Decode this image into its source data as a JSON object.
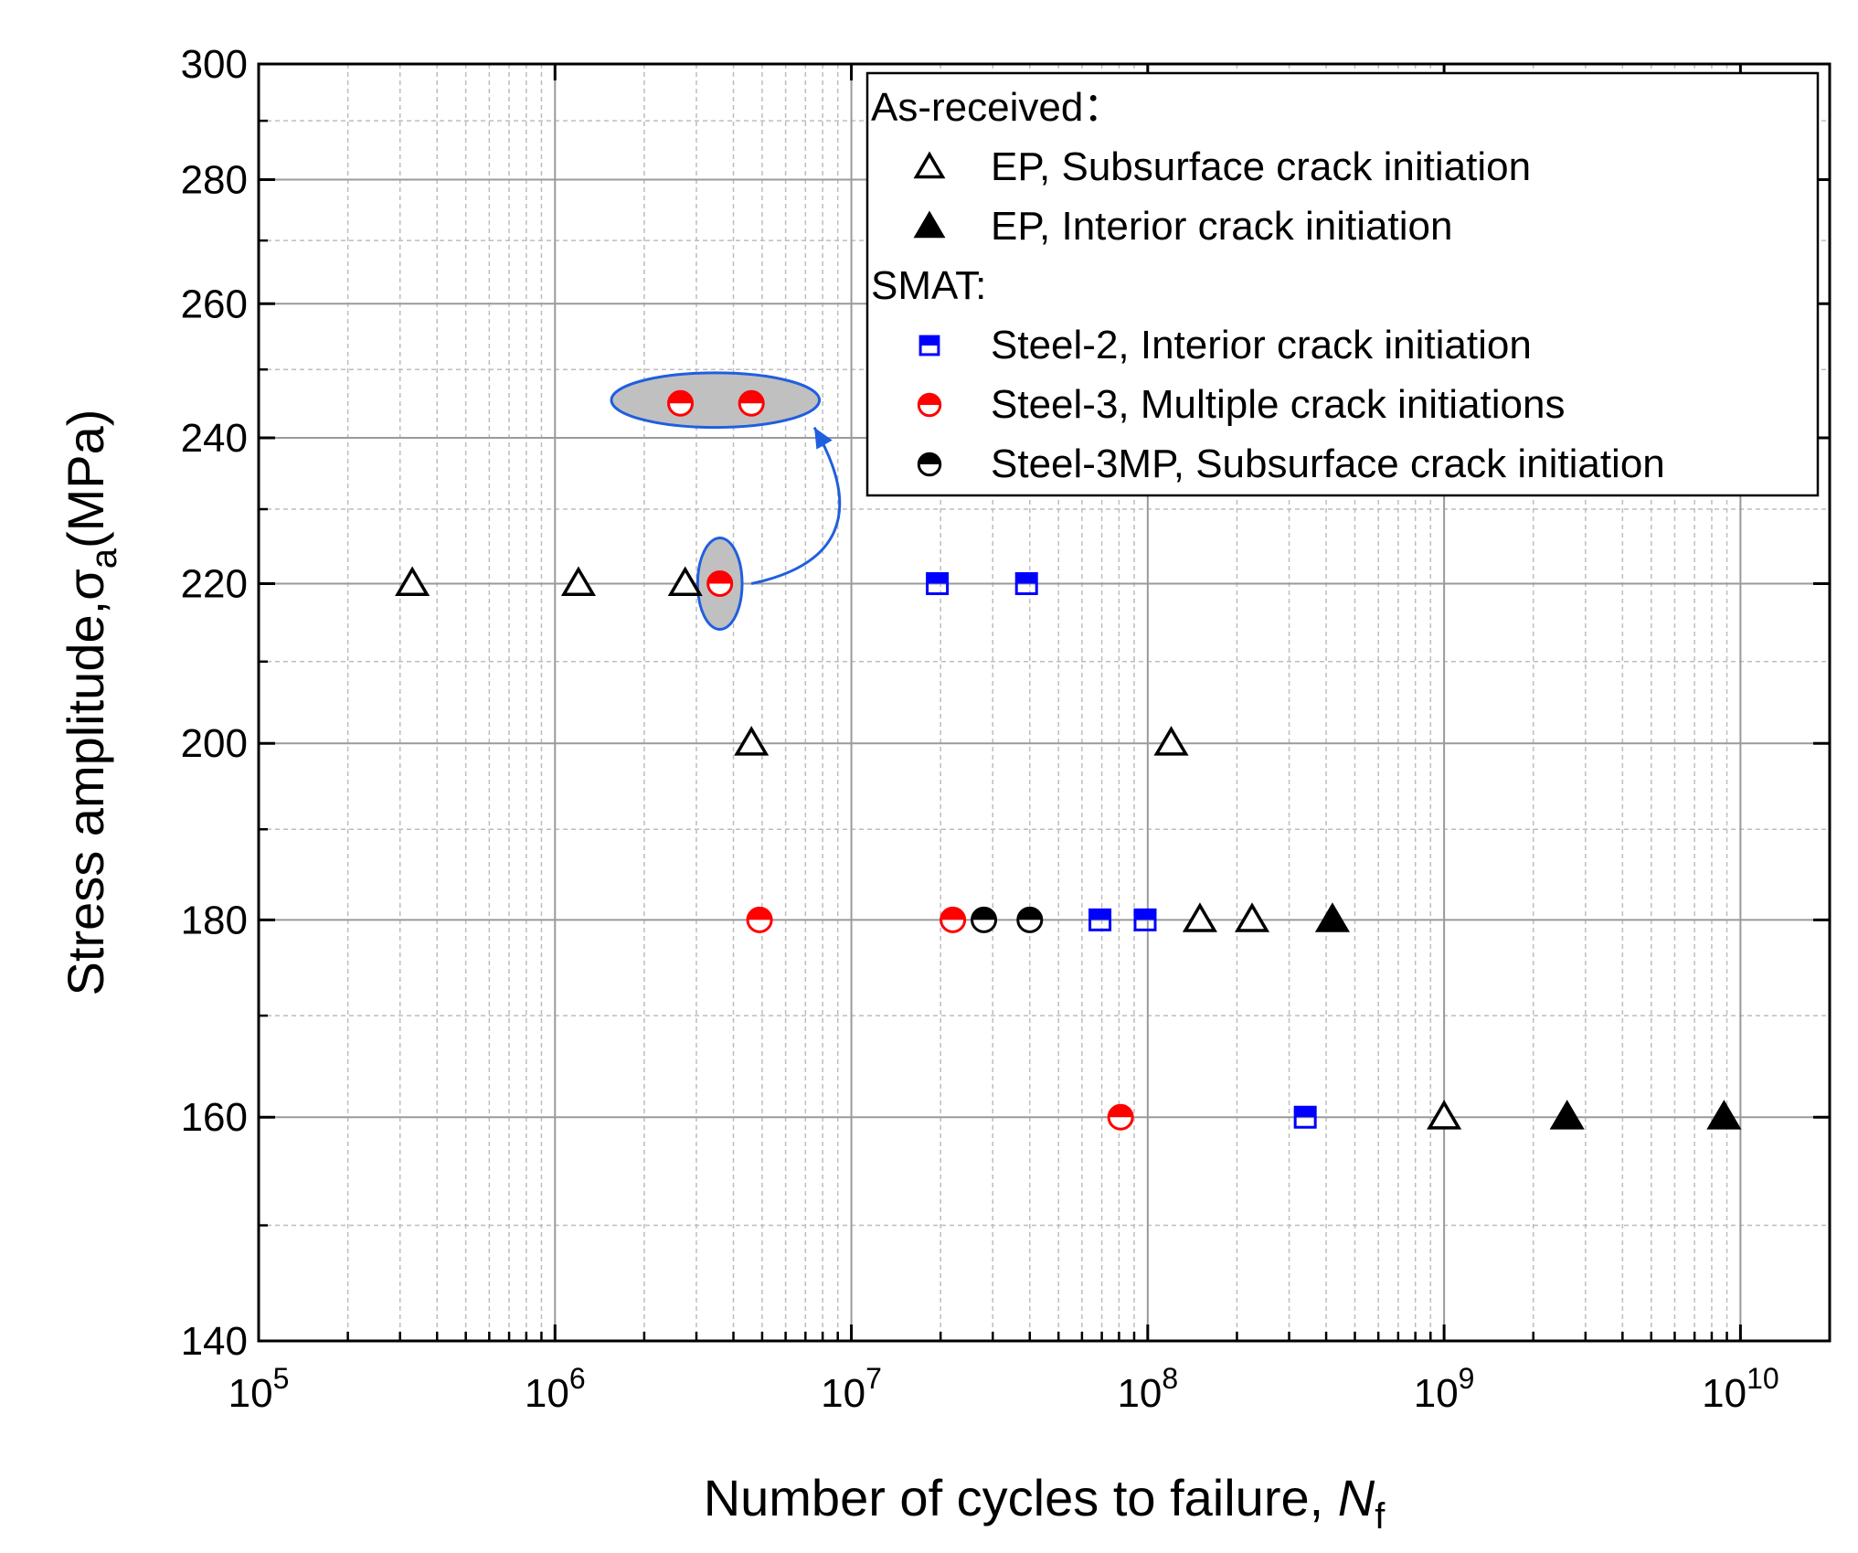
{
  "chart_data": {
    "type": "scatter",
    "title": "",
    "xlabel": "Number of cycles to failure, ",
    "xlabel_var": "N",
    "xlabel_sub": "f",
    "ylabel": "Stress amplitude,",
    "ylabel_symbol": "σ",
    "ylabel_sub": "a",
    "ylabel_unit": "(MPa)",
    "x_scale": "log",
    "y_scale": "log",
    "xlim": [
      100000,
      20000000000
    ],
    "ylim": [
      140,
      300
    ],
    "x_ticks": [
      {
        "value": 100000,
        "base": "10",
        "exp": "5"
      },
      {
        "value": 1000000,
        "base": "10",
        "exp": "6"
      },
      {
        "value": 10000000,
        "base": "10",
        "exp": "7"
      },
      {
        "value": 100000000,
        "base": "10",
        "exp": "8"
      },
      {
        "value": 1000000000,
        "base": "10",
        "exp": "9"
      },
      {
        "value": 10000000000,
        "base": "10",
        "exp": "10"
      }
    ],
    "y_ticks": [
      {
        "value": 140,
        "label": "140"
      },
      {
        "value": 160,
        "label": "160"
      },
      {
        "value": 180,
        "label": "180"
      },
      {
        "value": 200,
        "label": "200"
      },
      {
        "value": 220,
        "label": "220"
      },
      {
        "value": 240,
        "label": "240"
      },
      {
        "value": 260,
        "label": "260"
      },
      {
        "value": 280,
        "label": "280"
      },
      {
        "value": 300,
        "label": "300"
      }
    ],
    "y_minor_ticks": [
      150,
      170,
      190,
      210,
      230,
      250,
      270,
      290
    ],
    "grid": true,
    "legend_position": "top-right",
    "legend_groups": [
      {
        "header": "As-received：",
        "entries": [
          0,
          1
        ]
      },
      {
        "header": "SMAT:",
        "entries": [
          2,
          3,
          4
        ]
      }
    ],
    "series": [
      {
        "name": "EP, Subsurface crack initiation",
        "marker": "triangle-open",
        "color": "#000000",
        "points": [
          {
            "x": 330000,
            "y": 220
          },
          {
            "x": 1200000,
            "y": 220
          },
          {
            "x": 2750000,
            "y": 220
          },
          {
            "x": 4600000,
            "y": 200
          },
          {
            "x": 120000000,
            "y": 200
          },
          {
            "x": 150000000,
            "y": 180
          },
          {
            "x": 225000000,
            "y": 180
          },
          {
            "x": 1000000000,
            "y": 160
          }
        ]
      },
      {
        "name": "EP, Interior crack initiation",
        "marker": "triangle-filled",
        "color": "#000000",
        "points": [
          {
            "x": 420000000,
            "y": 180
          },
          {
            "x": 2600000000,
            "y": 160
          },
          {
            "x": 8800000000,
            "y": 160
          }
        ]
      },
      {
        "name": "Steel-2, Interior crack initiation",
        "marker": "square-half",
        "color": "#0000ff",
        "points": [
          {
            "x": 19500000,
            "y": 220
          },
          {
            "x": 39000000,
            "y": 220
          },
          {
            "x": 69000000,
            "y": 180
          },
          {
            "x": 98000000,
            "y": 180
          },
          {
            "x": 340000000,
            "y": 160
          }
        ]
      },
      {
        "name": "Steel-3, Multiple crack initiations",
        "marker": "circle-half",
        "color": "#ff0000",
        "points": [
          {
            "x": 2650000,
            "y": 245
          },
          {
            "x": 4600000,
            "y": 245
          },
          {
            "x": 3600000,
            "y": 220
          },
          {
            "x": 4900000,
            "y": 180
          },
          {
            "x": 22000000,
            "y": 180
          },
          {
            "x": 81000000,
            "y": 160
          }
        ]
      },
      {
        "name": "Steel-3MP, Subsurface crack initiation",
        "marker": "circle-half",
        "color": "#000000",
        "points": [
          {
            "x": 28000000,
            "y": 180
          },
          {
            "x": 40000000,
            "y": 180
          }
        ]
      }
    ],
    "annotations": [
      {
        "type": "ellipse",
        "label": "highlight",
        "cx": 3600000,
        "cy": 220,
        "rx_decades": 0.075,
        "ry_data_range": [
          214,
          226
        ]
      },
      {
        "type": "ellipse",
        "label": "highlight",
        "x_range": [
          1550000,
          7800000
        ],
        "y_range": [
          241.5,
          249.5
        ]
      },
      {
        "type": "arrow",
        "from": {
          "x": 4600000,
          "y": 220
        },
        "to": {
          "x": 7500000,
          "y": 241.5
        }
      }
    ],
    "annotation_style": {
      "fill": "#c0c0c0",
      "stroke": "#1f5fe0"
    }
  }
}
